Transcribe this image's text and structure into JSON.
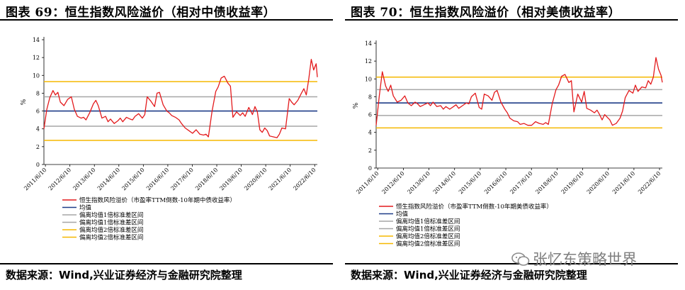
{
  "chart_data": [
    {
      "type": "line",
      "title": "图表 69：恒生指数风险溢价（相对中债收益率）",
      "source": "数据来源：Wind,兴业证券经济与金融研究院整理",
      "ylabel": "%",
      "ylim": [
        0,
        14
      ],
      "yticks": [
        "0",
        "2",
        "4",
        "6",
        "8",
        "10",
        "12",
        "14"
      ],
      "x_ticks": [
        "2011/6/10",
        "2012/6/10",
        "2013/6/10",
        "2014/6/10",
        "2015/6/10",
        "2016/6/10",
        "2017/6/10",
        "2018/6/10",
        "2019/6/10",
        "2020/6/10",
        "2021/6/10",
        "2022/6/10"
      ],
      "x_range": [
        2011.38,
        2022.55
      ],
      "bands": {
        "mean": 6.0,
        "sd1_upper": 7.6,
        "sd1_lower": 4.3,
        "sd2_upper": 9.3,
        "sd2_lower": 2.7
      },
      "series": [
        {
          "name": "恒生指数风险溢价（市盈率TTM倒数-10年期中债收益率）",
          "color": "#e31a1c",
          "x": [
            2011.38,
            2011.5,
            2011.62,
            2011.75,
            2011.85,
            2011.95,
            2012.05,
            2012.2,
            2012.35,
            2012.5,
            2012.62,
            2012.75,
            2012.9,
            2013.0,
            2013.1,
            2013.25,
            2013.4,
            2013.5,
            2013.6,
            2013.75,
            2013.9,
            2014.0,
            2014.1,
            2014.25,
            2014.4,
            2014.5,
            2014.6,
            2014.75,
            2014.9,
            2015.0,
            2015.1,
            2015.25,
            2015.4,
            2015.5,
            2015.6,
            2015.75,
            2015.9,
            2016.0,
            2016.1,
            2016.25,
            2016.4,
            2016.5,
            2016.6,
            2016.75,
            2016.9,
            2017.0,
            2017.15,
            2017.3,
            2017.45,
            2017.6,
            2017.75,
            2017.9,
            2018.0,
            2018.1,
            2018.25,
            2018.4,
            2018.5,
            2018.62,
            2018.75,
            2018.9,
            2019.0,
            2019.1,
            2019.25,
            2019.4,
            2019.5,
            2019.6,
            2019.75,
            2019.9,
            2020.0,
            2020.1,
            2020.2,
            2020.3,
            2020.4,
            2020.5,
            2020.6,
            2020.75,
            2020.9,
            2021.0,
            2021.1,
            2021.25,
            2021.4,
            2021.5,
            2021.6,
            2021.75,
            2021.9,
            2022.0,
            2022.1,
            2022.2,
            2022.3,
            2022.4,
            2022.5,
            2022.55
          ],
          "y": [
            4.0,
            6.2,
            7.5,
            8.3,
            7.8,
            8.1,
            7.0,
            6.6,
            7.3,
            7.6,
            6.2,
            5.4,
            5.2,
            5.3,
            5.0,
            5.8,
            6.8,
            7.2,
            6.6,
            5.2,
            5.4,
            4.8,
            5.1,
            4.6,
            4.9,
            5.2,
            4.8,
            5.3,
            5.1,
            5.0,
            5.4,
            5.7,
            5.2,
            5.6,
            7.6,
            7.1,
            6.5,
            8.0,
            8.1,
            6.7,
            6.0,
            5.8,
            5.5,
            5.3,
            5.0,
            4.6,
            4.1,
            3.8,
            3.5,
            3.9,
            3.4,
            3.3,
            3.4,
            3.1,
            6.0,
            8.2,
            8.7,
            9.7,
            9.9,
            9.1,
            8.8,
            5.3,
            5.9,
            5.5,
            5.8,
            5.4,
            6.4,
            5.6,
            6.5,
            5.9,
            3.9,
            3.6,
            4.1,
            3.8,
            3.2,
            3.1,
            3.0,
            3.4,
            4.1,
            4.0,
            7.4,
            7.0,
            6.7,
            7.2,
            8.0,
            8.5,
            7.8,
            9.6,
            11.8,
            10.6,
            11.3,
            9.8
          ]
        }
      ],
      "legend": [
        {
          "label": "恒生指数风险溢价（市盈率TTM倒数-10年期中债收益率）",
          "color": "#e31a1c"
        },
        {
          "label": "均值",
          "color": "#1f3c88"
        },
        {
          "label": "偏离均值1倍标准差区间",
          "color": "#a6a6a6"
        },
        {
          "label": "偏离均值1倍标准差区间",
          "color": "#a6a6a6"
        },
        {
          "label": "偏离均值2倍标准差区间",
          "color": "#f5b800"
        },
        {
          "label": "偏离均值2倍标准差区间",
          "color": "#f5b800"
        }
      ],
      "legend_position": "bottom"
    },
    {
      "type": "line",
      "title": "图表 70：恒生指数风险溢价（相对美债收益率）",
      "source": "数据来源：Wind,兴业证券经济与金融研究院整理",
      "ylabel": "%",
      "ylim": [
        0,
        14
      ],
      "yticks": [
        "0",
        "2",
        "4",
        "6",
        "8",
        "10",
        "12",
        "14"
      ],
      "x_ticks": [
        "2011/6/10",
        "2012/6/10",
        "2013/6/10",
        "2014/6/10",
        "2015/6/10",
        "2016/6/10",
        "2017/6/10",
        "2018/6/10",
        "2019/6/10",
        "2020/6/10",
        "2021/6/10",
        "2022/6/10"
      ],
      "x_range": [
        2011.38,
        2022.55
      ],
      "bands": {
        "mean": 7.3,
        "sd1_upper": 8.8,
        "sd1_lower": 5.9,
        "sd2_upper": 10.2,
        "sd2_lower": 4.5
      },
      "series": [
        {
          "name": "恒生指数风险溢价（市盈率TTM倒数-10年期美债收益率）",
          "color": "#e31a1c",
          "x": [
            2011.38,
            2011.5,
            2011.62,
            2011.75,
            2011.85,
            2011.95,
            2012.05,
            2012.2,
            2012.35,
            2012.5,
            2012.62,
            2012.75,
            2012.9,
            2013.0,
            2013.1,
            2013.25,
            2013.4,
            2013.5,
            2013.6,
            2013.75,
            2013.9,
            2014.0,
            2014.1,
            2014.25,
            2014.4,
            2014.5,
            2014.6,
            2014.75,
            2014.9,
            2015.0,
            2015.1,
            2015.25,
            2015.4,
            2015.5,
            2015.6,
            2015.75,
            2015.9,
            2016.0,
            2016.1,
            2016.25,
            2016.4,
            2016.5,
            2016.6,
            2016.75,
            2016.9,
            2017.0,
            2017.15,
            2017.3,
            2017.45,
            2017.6,
            2017.75,
            2017.9,
            2018.0,
            2018.1,
            2018.25,
            2018.4,
            2018.5,
            2018.62,
            2018.75,
            2018.9,
            2019.0,
            2019.1,
            2019.25,
            2019.4,
            2019.5,
            2019.6,
            2019.75,
            2019.9,
            2020.0,
            2020.1,
            2020.2,
            2020.3,
            2020.4,
            2020.5,
            2020.6,
            2020.75,
            2020.9,
            2021.0,
            2021.1,
            2021.25,
            2021.4,
            2021.5,
            2021.6,
            2021.75,
            2021.9,
            2022.0,
            2022.1,
            2022.2,
            2022.3,
            2022.4,
            2022.5,
            2022.55
          ],
          "y": [
            4.8,
            8.0,
            10.8,
            9.2,
            8.6,
            9.3,
            8.1,
            7.4,
            7.6,
            8.1,
            7.3,
            7.0,
            7.4,
            7.2,
            6.9,
            7.1,
            7.3,
            7.0,
            7.4,
            6.9,
            7.0,
            6.6,
            6.9,
            6.6,
            6.9,
            7.1,
            6.7,
            7.0,
            7.3,
            7.2,
            8.0,
            8.4,
            6.8,
            6.6,
            8.3,
            8.1,
            7.6,
            8.5,
            8.7,
            7.4,
            6.6,
            6.2,
            5.6,
            5.3,
            5.2,
            4.9,
            5.0,
            4.8,
            4.8,
            5.2,
            5.0,
            4.9,
            5.1,
            4.9,
            7.2,
            8.8,
            9.3,
            10.3,
            10.5,
            9.6,
            9.8,
            6.3,
            8.3,
            7.4,
            8.6,
            6.7,
            6.5,
            6.2,
            6.5,
            6.0,
            5.4,
            6.0,
            5.7,
            5.4,
            4.8,
            5.0,
            5.6,
            6.4,
            7.9,
            8.7,
            8.4,
            9.3,
            8.6,
            9.1,
            9.0,
            9.8,
            9.4,
            10.2,
            12.4,
            11.1,
            10.4,
            9.6
          ]
        }
      ],
      "legend": [
        {
          "label": "恒生指数风险溢价（市盈率TTM倒数-10年期美债收益率）",
          "color": "#e31a1c"
        },
        {
          "label": "均值",
          "color": "#1f3c88"
        },
        {
          "label": "偏离均值1倍标准差区间",
          "color": "#a6a6a6"
        },
        {
          "label": "偏离均值1倍标准差区间",
          "color": "#a6a6a6"
        },
        {
          "label": "偏离均值2倍标准差区间",
          "color": "#f5b800"
        },
        {
          "label": "偏离均值2倍标准差区间",
          "color": "#f5b800"
        }
      ],
      "legend_position": "bottom"
    }
  ],
  "watermark": {
    "text": "张忆东策略世界",
    "icon": "wechat-icon"
  },
  "colors": {
    "series": "#e31a1c",
    "mean": "#1f3c88",
    "sd1": "#a6a6a6",
    "sd2": "#f5b800",
    "axis": "#000000"
  }
}
